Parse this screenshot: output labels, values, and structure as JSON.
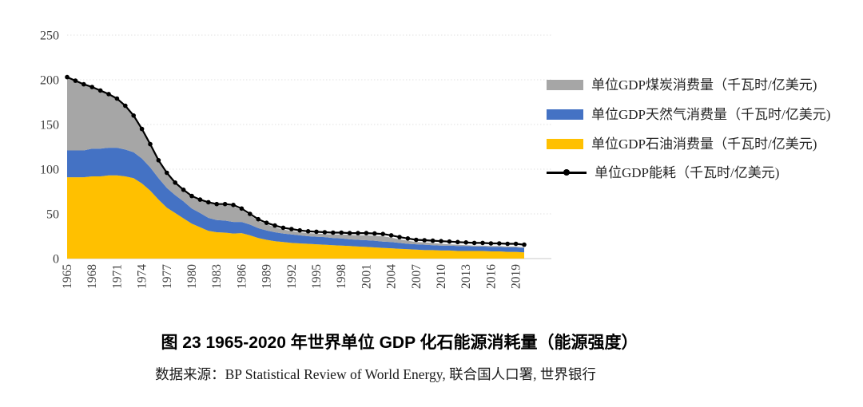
{
  "figure": {
    "title": "图 23 1965-2020 年世界单位 GDP 化石能源消耗量（能源强度）",
    "source": "数据来源：BP Statistical Review of World Energy, 联合国人口署, 世界银行"
  },
  "chart_data": {
    "type": "area",
    "subtype": "stacked-area-with-total-line",
    "title": "",
    "xlabel": "",
    "ylabel": "",
    "ylim": [
      0,
      250
    ],
    "y_ticks": [
      0,
      50,
      100,
      150,
      200,
      250
    ],
    "grid": "horizontal-dotted",
    "legend_position": "right",
    "x": [
      1965,
      1966,
      1967,
      1968,
      1969,
      1970,
      1971,
      1972,
      1973,
      1974,
      1975,
      1976,
      1977,
      1978,
      1979,
      1980,
      1981,
      1982,
      1983,
      1984,
      1985,
      1986,
      1987,
      1988,
      1989,
      1990,
      1991,
      1992,
      1993,
      1994,
      1995,
      1996,
      1997,
      1998,
      1999,
      2000,
      2001,
      2002,
      2003,
      2004,
      2005,
      2006,
      2007,
      2008,
      2009,
      2010,
      2011,
      2012,
      2013,
      2014,
      2015,
      2016,
      2017,
      2018,
      2019,
      2020
    ],
    "x_tick_labels": [
      "1965",
      "1968",
      "1971",
      "1974",
      "1977",
      "1980",
      "1983",
      "1986",
      "1989",
      "1992",
      "1995",
      "1998",
      "2001",
      "2004",
      "2007",
      "2010",
      "2013",
      "2016",
      "2019"
    ],
    "series": [
      {
        "name": "单位GDP石油消费量（千瓦时/亿美元)",
        "role": "stacked-area",
        "color": "#FFC000",
        "values": [
          91,
          91,
          91,
          92,
          92,
          93,
          93,
          92,
          90,
          84,
          76,
          66,
          57,
          51,
          45,
          39,
          35,
          31,
          29.5,
          29,
          28,
          28.5,
          26,
          23,
          21,
          19.5,
          18.5,
          17.5,
          17,
          16.5,
          16,
          15.5,
          15,
          14.5,
          14,
          13.5,
          13,
          12.5,
          12,
          11.5,
          11,
          10.5,
          10,
          9.5,
          9.5,
          9,
          9,
          8.5,
          8.5,
          8.5,
          8.5,
          8,
          8,
          7.5,
          7.5,
          7
        ]
      },
      {
        "name": "单位GDP天然气消费量（千瓦时/亿美元)",
        "role": "stacked-area",
        "color": "#4472C4",
        "values": [
          30,
          30,
          30,
          31,
          31,
          31,
          31,
          30,
          29,
          28,
          26,
          24,
          22,
          20,
          19,
          17,
          16,
          14.5,
          13.5,
          13.5,
          13,
          12.5,
          12,
          11,
          10.5,
          10,
          9.5,
          9.5,
          9,
          8.5,
          8.5,
          8.5,
          8,
          8,
          7.5,
          7.5,
          7.5,
          7.5,
          7,
          7,
          6.5,
          6,
          6,
          6,
          5.5,
          5.5,
          5.5,
          5.5,
          5.5,
          5,
          5,
          5,
          5,
          5,
          5,
          5
        ]
      },
      {
        "name": "单位GDP煤炭消费量（千瓦时/亿美元)",
        "role": "stacked-area",
        "color": "#A6A6A6",
        "values": [
          82,
          78,
          74,
          69,
          65,
          60,
          55,
          49,
          41,
          33,
          26,
          19,
          16,
          13,
          12,
          13,
          14,
          16.5,
          17,
          17.5,
          17.5,
          13.5,
          10.5,
          8.5,
          7,
          5.5,
          4.5,
          4,
          3.5,
          3.5,
          3.5,
          3.5,
          4,
          4.5,
          5,
          5,
          5.5,
          5.5,
          6,
          5,
          4,
          3.5,
          2.5,
          2.5,
          2.5,
          2,
          1.5,
          1.5,
          1,
          1,
          1,
          1,
          1,
          1,
          1,
          0.5
        ]
      },
      {
        "name": "单位GDP能耗（千瓦时/亿美元)",
        "role": "line",
        "color": "#000000",
        "values": [
          203,
          199,
          195,
          192,
          188,
          184,
          179,
          171,
          160,
          145,
          128,
          110,
          96,
          85,
          77,
          70,
          66,
          63,
          61,
          61,
          60,
          56,
          50,
          44,
          40,
          37,
          34.5,
          33,
          31.5,
          30.5,
          30,
          29.5,
          29,
          29,
          28.5,
          28.5,
          28.5,
          28,
          27.5,
          26,
          24,
          22.5,
          21,
          20.5,
          20,
          19.5,
          19,
          18.5,
          18,
          17.5,
          17.5,
          17,
          17,
          16.5,
          16.5,
          15.5
        ]
      }
    ],
    "legend": [
      {
        "label": "单位GDP煤炭消费量（千瓦时/亿美元)",
        "swatch": "area",
        "color": "#A6A6A6"
      },
      {
        "label": "单位GDP天然气消费量（千瓦时/亿美元)",
        "swatch": "area",
        "color": "#4472C4"
      },
      {
        "label": "单位GDP石油消费量（千瓦时/亿美元)",
        "swatch": "area",
        "color": "#FFC000"
      },
      {
        "label": "单位GDP能耗（千瓦时/亿美元)",
        "swatch": "line-marker",
        "color": "#000000"
      }
    ]
  }
}
